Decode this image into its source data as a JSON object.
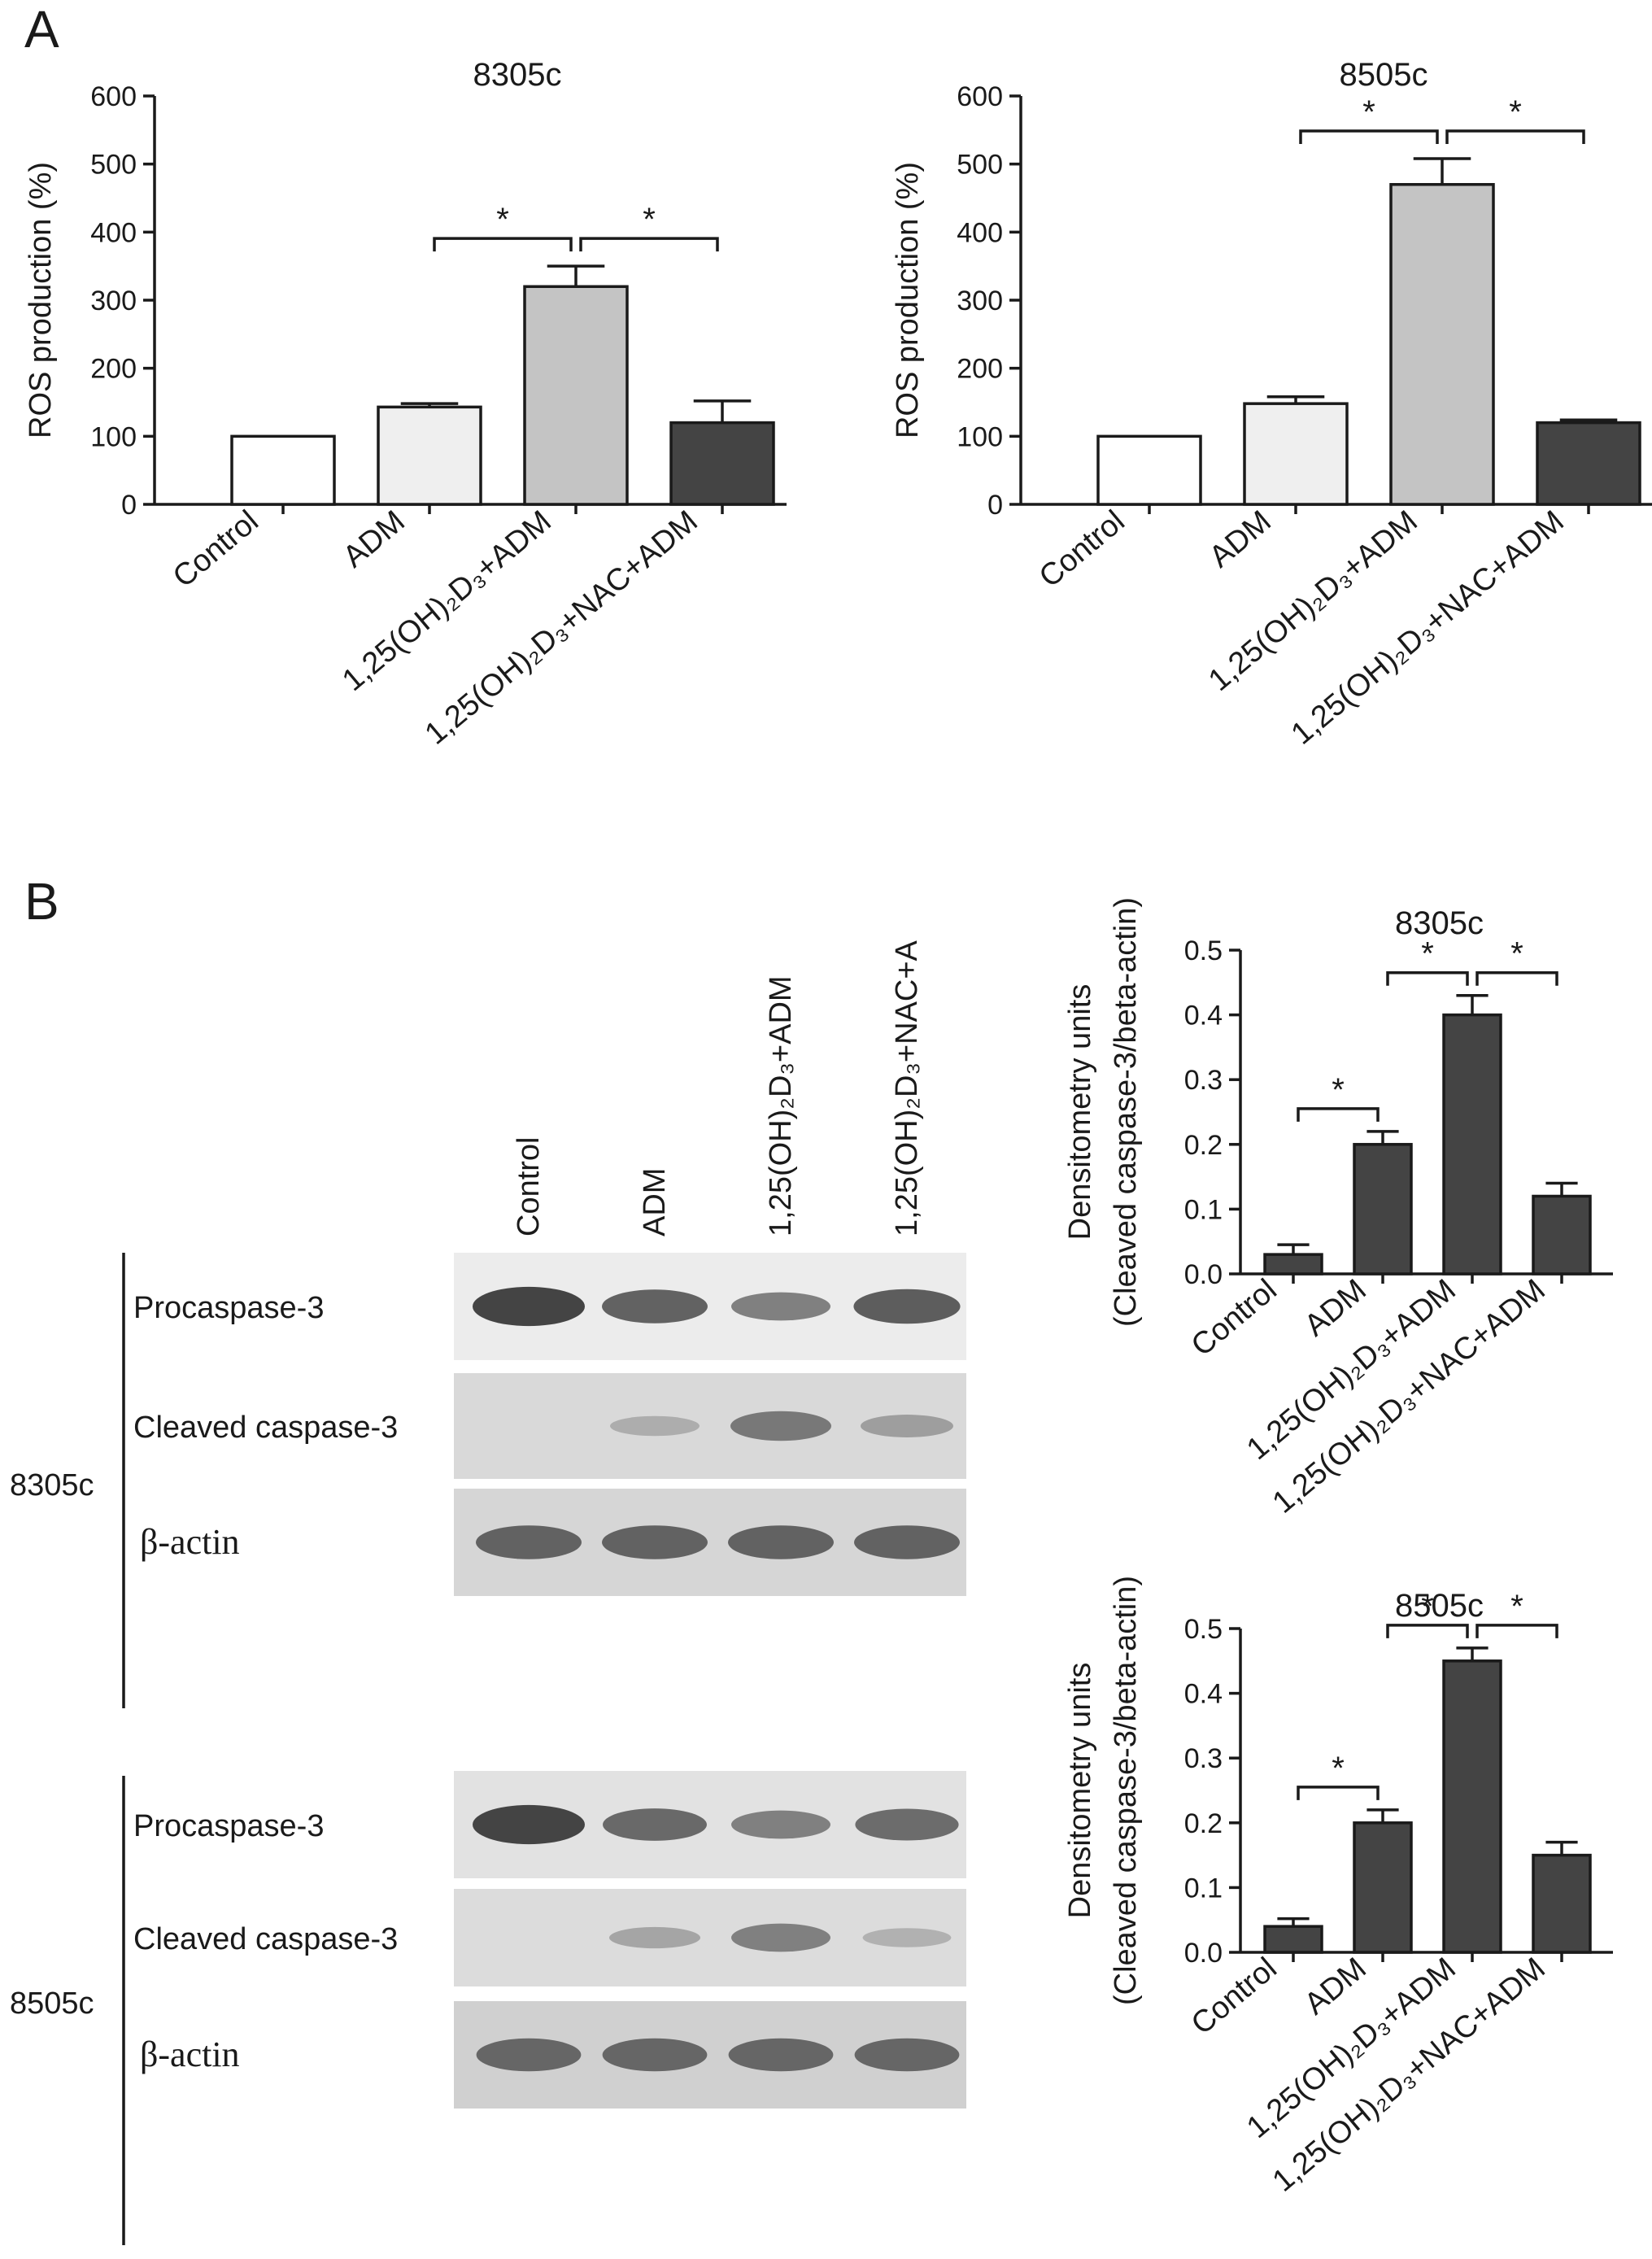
{
  "panels": {
    "A": "A",
    "B": "B"
  },
  "chart_data": [
    {
      "id": "ros-8305c",
      "type": "bar",
      "title": "8305c",
      "ylabel": "ROS production (%)",
      "ylim": [
        0,
        600
      ],
      "yticks": [
        "0",
        "100",
        "200",
        "300",
        "400",
        "500",
        "600"
      ],
      "categories": [
        "Control",
        "ADM",
        "1,25(OH)₂D₃+ADM",
        "1,25(OH)₂D₃+NAC+ADM"
      ],
      "values": [
        100,
        143,
        320,
        120
      ],
      "errors": [
        0,
        5,
        30,
        32
      ],
      "bar_colors": [
        "#ffffff",
        "#efefef",
        "#c4c4c4",
        "#444444"
      ],
      "significance": [
        {
          "from": 1,
          "to": 2,
          "label": "*"
        },
        {
          "from": 2,
          "to": 3,
          "label": "*"
        }
      ]
    },
    {
      "id": "ros-8505c",
      "type": "bar",
      "title": "8505c",
      "ylabel": "ROS production (%)",
      "ylim": [
        0,
        600
      ],
      "yticks": [
        "0",
        "100",
        "200",
        "300",
        "400",
        "500",
        "600"
      ],
      "categories": [
        "Control",
        "ADM",
        "1,25(OH)₂D₃+ADM",
        "1,25(OH)₂D₃+NAC+ADM"
      ],
      "values": [
        100,
        148,
        470,
        120
      ],
      "errors": [
        0,
        10,
        38,
        4
      ],
      "bar_colors": [
        "#ffffff",
        "#efefef",
        "#c4c4c4",
        "#444444"
      ],
      "significance": [
        {
          "from": 1,
          "to": 2,
          "label": "*"
        },
        {
          "from": 2,
          "to": 3,
          "label": "*"
        }
      ]
    },
    {
      "id": "densito-8305c",
      "type": "bar",
      "title": "8305c",
      "ylabel": "Densitometry units",
      "ylabel2": "(Cleaved caspase-3/beta-actin)",
      "ylim": [
        0,
        0.5
      ],
      "yticks": [
        "0.0",
        "0.1",
        "0.2",
        "0.3",
        "0.4",
        "0.5"
      ],
      "categories": [
        "Control",
        "ADM",
        "1,25(OH)₂D₃+ADM",
        "1,25(OH)₂D₃+NAC+ADM"
      ],
      "values": [
        0.03,
        0.2,
        0.4,
        0.12
      ],
      "errors": [
        0.015,
        0.02,
        0.03,
        0.02
      ],
      "bar_colors": [
        "#444444",
        "#444444",
        "#444444",
        "#444444"
      ],
      "significance": [
        {
          "from": 0,
          "to": 1,
          "label": "*"
        },
        {
          "from": 1,
          "to": 2,
          "label": "*"
        },
        {
          "from": 2,
          "to": 3,
          "label": "*"
        }
      ]
    },
    {
      "id": "densito-8505c",
      "type": "bar",
      "title": "8505c",
      "ylabel": "Densitometry units",
      "ylabel2": "(Cleaved caspase-3/beta-actin)",
      "ylim": [
        0,
        0.5
      ],
      "yticks": [
        "0.0",
        "0.1",
        "0.2",
        "0.3",
        "0.4",
        "0.5"
      ],
      "categories": [
        "Control",
        "ADM",
        "1,25(OH)₂D₃+ADM",
        "1,25(OH)₂D₃+NAC+ADM"
      ],
      "values": [
        0.04,
        0.2,
        0.45,
        0.15
      ],
      "errors": [
        0.012,
        0.02,
        0.02,
        0.02
      ],
      "bar_colors": [
        "#444444",
        "#444444",
        "#444444",
        "#444444"
      ],
      "significance": [
        {
          "from": 0,
          "to": 1,
          "label": "*"
        },
        {
          "from": 1,
          "to": 2,
          "label": "*"
        },
        {
          "from": 2,
          "to": 3,
          "label": "*"
        }
      ]
    }
  ],
  "western_blot": {
    "lanes": [
      "Control",
      "ADM",
      "1,25(OH)₂D₃+ADM",
      "1,25(OH)₂D₃+NAC+A"
    ],
    "cell_lines": [
      {
        "name": "8305c",
        "rows": [
          {
            "label": "Procaspase-3",
            "intensities": [
              0.95,
              0.75,
              0.55,
              0.78
            ],
            "bg": "#ececec"
          },
          {
            "label": "Cleaved caspase-3",
            "intensities": [
              0.0,
              0.25,
              0.6,
              0.35
            ],
            "bg": "#d9d9d9"
          },
          {
            "label": "β-actin",
            "intensities": [
              0.75,
              0.75,
              0.75,
              0.75
            ],
            "bg": "#d6d6d6"
          }
        ]
      },
      {
        "name": "8505c",
        "rows": [
          {
            "label": "Procaspase-3",
            "intensities": [
              0.95,
              0.7,
              0.55,
              0.68
            ],
            "bg": "#e2e2e2"
          },
          {
            "label": "Cleaved caspase-3",
            "intensities": [
              0.0,
              0.3,
              0.55,
              0.22
            ],
            "bg": "#dcdcdc"
          },
          {
            "label": "β-actin",
            "intensities": [
              0.72,
              0.72,
              0.72,
              0.72
            ],
            "bg": "#d0d0d0"
          }
        ]
      }
    ]
  }
}
